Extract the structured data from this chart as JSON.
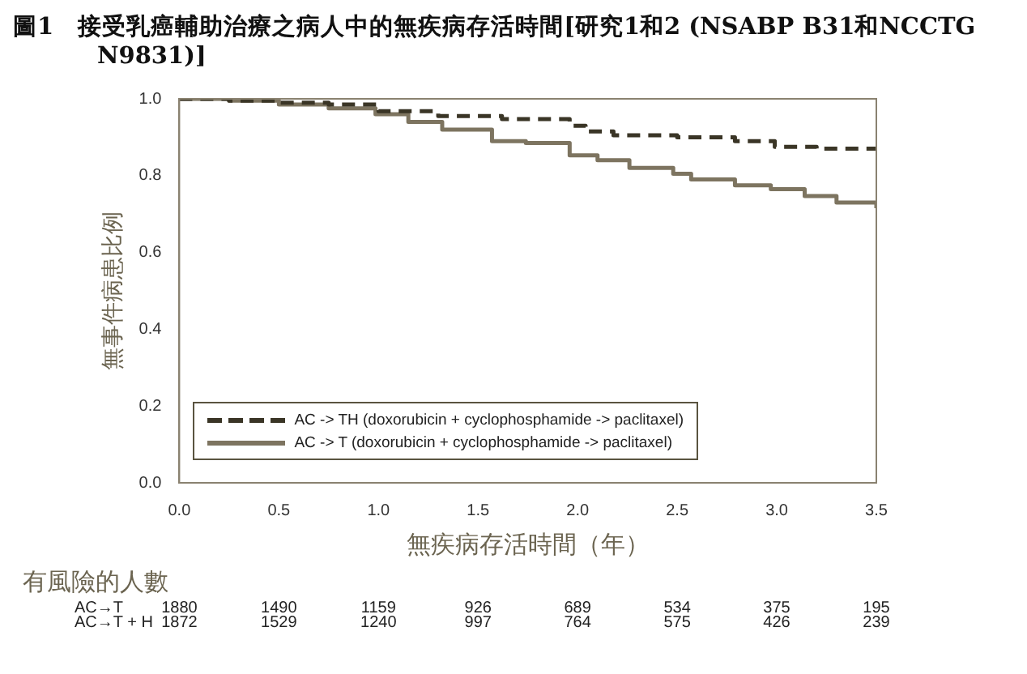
{
  "chart_data": {
    "type": "step",
    "title": "圖1　接受乳癌輔助治療之病人中的無疾病存活時間[研究1和2 (NSABP B31和NCCTG N9831)]",
    "xlabel": "無疾病存活時間（年）",
    "ylabel": "無事件病患比例",
    "xlim": [
      0,
      3.5
    ],
    "xticks": [
      {
        "value": 0,
        "label": "0.0"
      },
      0.5,
      {
        "value": 1,
        "label": "1.0"
      },
      1.5,
      {
        "value": 2,
        "label": "2.0"
      },
      2.5,
      {
        "value": 3,
        "label": "3.0"
      },
      3.5
    ],
    "ylim": [
      0,
      1
    ],
    "yticks": [
      {
        "value": 0,
        "label": "0.0"
      },
      0.2,
      0.4,
      0.6,
      0.8,
      {
        "value": 1,
        "label": "1.0"
      }
    ],
    "legend": "bottom left",
    "grid": false,
    "series": [
      {
        "name": "AC -> TH (doxorubicin + cyclophosphamide -> paclitaxel)",
        "color": "#3a3526",
        "line_style": "dashed",
        "x": [
          0,
          0.25,
          0.5,
          0.75,
          1.0,
          1.3,
          1.62,
          1.96,
          2.04,
          2.18,
          2.5,
          2.79,
          2.99,
          3.2,
          3.5
        ],
        "values": [
          1.0,
          0.995,
          0.99,
          0.985,
          0.968,
          0.955,
          0.947,
          0.93,
          0.915,
          0.905,
          0.9,
          0.89,
          0.875,
          0.87,
          0.865
        ]
      },
      {
        "name": "AC -> T (doxorubicin + cyclophosphamide -> paclitaxel)",
        "color": "#7d7460",
        "line_style": "solid",
        "x": [
          0,
          0.25,
          0.5,
          0.75,
          0.985,
          1.15,
          1.32,
          1.57,
          1.74,
          1.96,
          2.1,
          2.26,
          2.48,
          2.57,
          2.79,
          2.97,
          3.14,
          3.3,
          3.5
        ],
        "values": [
          1.0,
          0.995,
          0.985,
          0.975,
          0.96,
          0.94,
          0.92,
          0.89,
          0.885,
          0.853,
          0.84,
          0.82,
          0.805,
          0.79,
          0.775,
          0.765,
          0.747,
          0.73,
          0.715
        ]
      }
    ],
    "annotations": [
      "有風險的人數",
      "AC→T",
      "1880",
      "1490",
      "1159",
      "926",
      "689",
      "534",
      "375",
      "195",
      "AC→T + H",
      "1872",
      "1529",
      "1240",
      "997",
      "764",
      "575",
      "426",
      "239"
    ]
  }
}
